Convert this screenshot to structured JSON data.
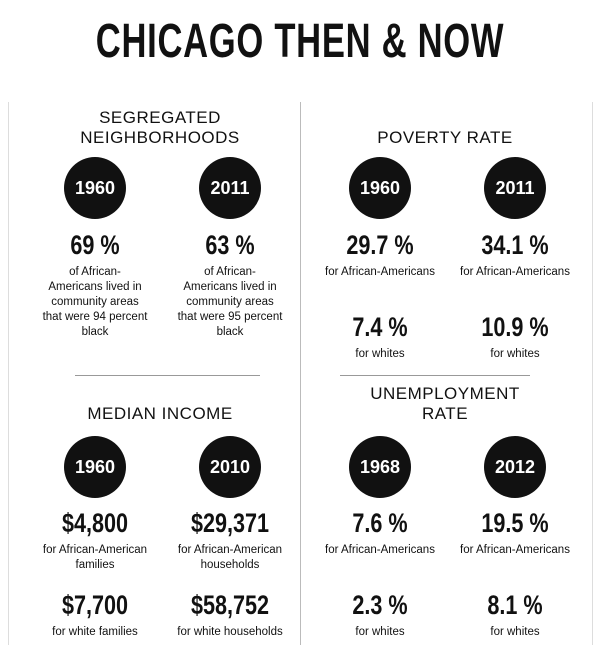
{
  "title": "CHICAGO THEN & NOW",
  "panels": [
    {
      "title": "SEGREGATED NEIGHBORHOODS",
      "columns": [
        {
          "year": "1960",
          "stats": [
            {
              "value": "69 %",
              "label": "of African-Americans lived in community areas that were 94 percent black"
            }
          ]
        },
        {
          "year": "2011",
          "stats": [
            {
              "value": "63 %",
              "label": "of African-Americans lived in community areas that were 95 percent black"
            }
          ]
        }
      ]
    },
    {
      "title": "POVERTY RATE",
      "columns": [
        {
          "year": "1960",
          "stats": [
            {
              "value": "29.7 %",
              "label": "for African-Americans"
            },
            {
              "value": "7.4 %",
              "label": "for whites"
            }
          ]
        },
        {
          "year": "2011",
          "stats": [
            {
              "value": "34.1 %",
              "label": "for African-Americans"
            },
            {
              "value": "10.9 %",
              "label": "for whites"
            }
          ]
        }
      ]
    },
    {
      "title": "MEDIAN INCOME",
      "columns": [
        {
          "year": "1960",
          "stats": [
            {
              "value": "$4,800",
              "label": "for African-American families"
            },
            {
              "value": "$7,700",
              "label": "for white families"
            }
          ]
        },
        {
          "year": "2010",
          "stats": [
            {
              "value": "$29,371",
              "label": "for African-American households"
            },
            {
              "value": "$58,752",
              "label": "for white households"
            }
          ]
        }
      ]
    },
    {
      "title": "UNEMPLOYMENT RATE",
      "columns": [
        {
          "year": "1968",
          "stats": [
            {
              "value": "7.6 %",
              "label": "for African-Americans"
            },
            {
              "value": "2.3 %",
              "label": "for whites"
            }
          ]
        },
        {
          "year": "2012",
          "stats": [
            {
              "value": "19.5 %",
              "label": "for African-Americans"
            },
            {
              "value": "8.1 %",
              "label": "for whites"
            }
          ]
        }
      ]
    }
  ]
}
